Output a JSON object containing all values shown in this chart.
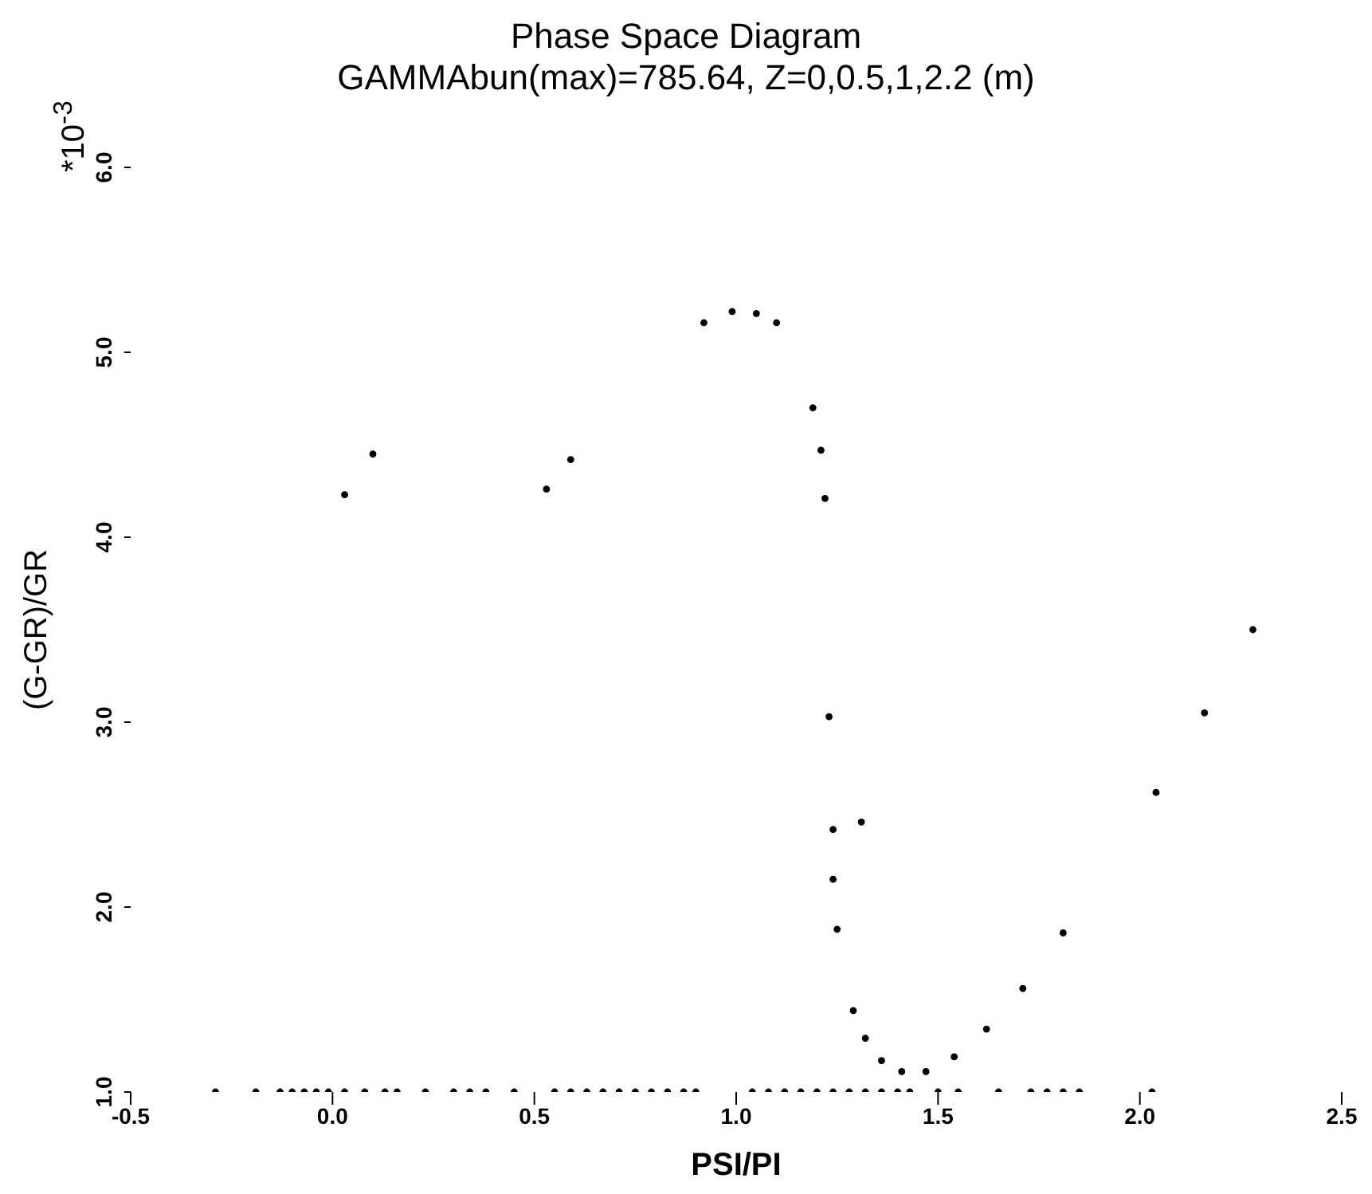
{
  "chart_data": {
    "type": "scatter",
    "title": "Phase Space Diagram",
    "subtitle": "GAMMAbun(max)=785.64, Z=0,0.5,1,2.2 (m)",
    "xlabel": "PSI/PI",
    "ylabel": "(G-GR)/GR",
    "annotations": [
      "*10$^{-3}$"
    ],
    "xlim": [
      -0.5,
      2.5
    ],
    "xticks": [
      {
        "value": -0.5,
        "label": "-0.5"
      },
      {
        "value": 0,
        "label": "0.0"
      },
      {
        "value": 0.5,
        "label": "0.5"
      },
      {
        "value": 1,
        "label": "1.0"
      },
      {
        "value": 1.5,
        "label": "1.5"
      },
      {
        "value": 2,
        "label": "2.0"
      },
      {
        "value": 2.5,
        "label": "2.5"
      }
    ],
    "ylim": [
      1,
      6
    ],
    "yticks": [
      {
        "value": 1,
        "label": "1.0"
      },
      {
        "value": 2,
        "label": "2.0"
      },
      {
        "value": 3,
        "label": "3.0"
      },
      {
        "value": 4,
        "label": "4.0"
      },
      {
        "value": 5,
        "label": "5.0"
      },
      {
        "value": 6,
        "label": "6.0"
      }
    ],
    "grid": false,
    "marker": "circle",
    "series": [
      {
        "color": "#000000",
        "x": [
          0.03,
          0.1,
          0.53,
          0.59,
          0.92,
          0.99,
          1.05,
          1.1,
          1.19,
          1.21,
          1.22,
          2.28,
          1.23,
          2.16,
          2.04,
          1.24,
          1.31,
          1.24,
          1.25,
          1.81,
          1.71,
          1.29,
          1.62,
          1.32,
          1.54,
          1.36,
          1.41,
          1.47,
          -0.29,
          -0.19,
          -0.13,
          -0.1,
          -0.07,
          -0.04,
          -0.01,
          0.03,
          0.08,
          0.13,
          0.16,
          0.23,
          0.3,
          0.34,
          0.38,
          0.45,
          0.55,
          0.59,
          0.63,
          0.67,
          0.71,
          0.75,
          0.79,
          0.83,
          0.87,
          0.9,
          1.04,
          1.08,
          1.12,
          1.16,
          1.2,
          1.24,
          1.28,
          1.32,
          1.36,
          1.4,
          1.43,
          1.5,
          1.55,
          1.65,
          1.73,
          1.77,
          1.81,
          1.85,
          2.03
        ],
        "values": [
          4.23,
          4.45,
          4.26,
          4.42,
          5.16,
          5.22,
          5.21,
          5.16,
          4.7,
          4.47,
          4.21,
          3.5,
          3.03,
          3.05,
          2.62,
          2.42,
          2.46,
          2.15,
          1.88,
          1.86,
          1.56,
          1.44,
          1.34,
          1.29,
          1.19,
          1.17,
          1.11,
          1.11,
          1,
          1,
          1,
          1,
          1,
          1,
          1,
          1,
          1,
          1,
          1,
          1,
          1,
          1,
          1,
          1,
          1,
          1,
          1,
          1,
          1,
          1,
          1,
          1,
          1,
          1,
          1,
          1,
          1,
          1,
          1,
          1,
          1,
          1,
          1,
          1,
          1,
          1,
          1,
          1,
          1,
          1,
          1,
          1,
          1
        ]
      }
    ]
  }
}
